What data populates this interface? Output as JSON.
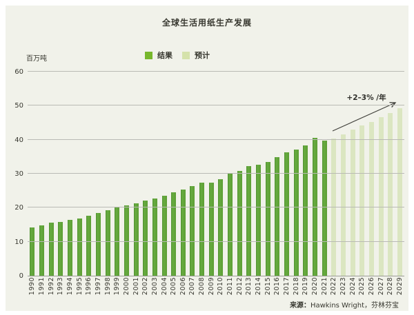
{
  "title": "全球生活用纸生产发展",
  "y_unit_label": "百万吨",
  "legend": [
    {
      "label": "结果",
      "color": "#77b72c"
    },
    {
      "label": "预计",
      "color": "#d5e2ab"
    }
  ],
  "annotation": {
    "text": "+2–3% /年"
  },
  "source": {
    "prefix": "来源：",
    "text": "Hawkins Wright，芬林芬宝"
  },
  "colors": {
    "background": "#f1f2ea",
    "actual_bar": "#61a53b",
    "forecast_bar": "#dbe6c1",
    "gridline": "#b9bab4",
    "text": "#37372f"
  },
  "chart_data": {
    "type": "bar",
    "title": "全球生活用纸生产发展",
    "xlabel": "",
    "ylabel": "百万吨",
    "ylim": [
      0,
      60
    ],
    "yticks": [
      0,
      10,
      20,
      30,
      40,
      50,
      60
    ],
    "grid": true,
    "legend_position": "top-center",
    "categories": [
      "1990",
      "1991",
      "1992",
      "1993",
      "1994",
      "1995",
      "1996",
      "1997",
      "1998",
      "1999",
      "2000",
      "2001",
      "2002",
      "2003",
      "2004",
      "2005",
      "2006",
      "2007",
      "2008",
      "2009",
      "2010",
      "2011",
      "2012",
      "2013",
      "2014",
      "2015",
      "2016",
      "2017",
      "2018",
      "2019",
      "2020",
      "2021",
      "2022",
      "2023",
      "2024",
      "2025",
      "2026",
      "2027",
      "2028",
      "2029"
    ],
    "series": [
      {
        "name": "结果",
        "kind": "actual",
        "color": "#61a53b",
        "values": [
          14.1,
          14.9,
          15.6,
          15.9,
          16.4,
          16.9,
          17.6,
          18.5,
          19.2,
          20.0,
          20.6,
          21.3,
          22.0,
          22.8,
          23.6,
          24.5,
          25.3,
          26.3,
          27.4,
          27.4,
          28.4,
          30.0,
          30.9,
          32.2,
          32.6,
          33.5,
          34.9,
          36.3,
          37.1,
          38.4,
          40.5,
          39.7,
          null,
          null,
          null,
          null,
          null,
          null,
          null,
          null
        ]
      },
      {
        "name": "预计",
        "kind": "forecast",
        "color": "#dbe6c1",
        "values": [
          null,
          null,
          null,
          null,
          null,
          null,
          null,
          null,
          null,
          null,
          null,
          null,
          null,
          null,
          null,
          null,
          null,
          null,
          null,
          null,
          null,
          null,
          null,
          null,
          null,
          null,
          null,
          null,
          null,
          null,
          null,
          null,
          40.4,
          41.6,
          42.9,
          44.1,
          45.3,
          46.6,
          47.9,
          49.2
        ]
      }
    ],
    "annotations": [
      {
        "text": "+2–3% /年",
        "type": "growth-arrow",
        "x_range": [
          "2022",
          "2029"
        ],
        "y_range": [
          22,
          30
        ]
      }
    ]
  }
}
